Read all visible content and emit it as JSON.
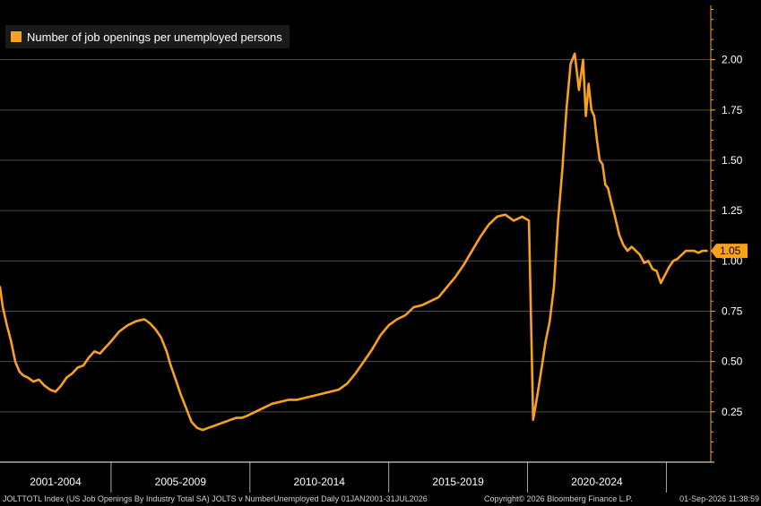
{
  "colors": {
    "background": "#000000",
    "series": "#f9a11b",
    "grid": "#4d4d4d",
    "axis": "#ffffff",
    "last_value_tag": "#f9a11b"
  },
  "legend": {
    "label": "Number of job openings per unemployed persons"
  },
  "footer": {
    "source": "JOLTTOTL Index (US Job Openings By Industry Total SA) JOLTS v NumberUnemployed Daily 01JAN2001-31JUL2026",
    "copyright": "Copyright© 2026 Bloomberg Finance L.P.",
    "timestamp": "01-Sep-2026 11:38:59"
  },
  "chart_data": {
    "type": "line",
    "title": "",
    "xlabel": "",
    "ylabel": "",
    "ylim": [
      0.0,
      2.27
    ],
    "y_axis_position": "right",
    "grid": true,
    "legend_position": "top-left",
    "x_range": [
      2001.0,
      2026.6
    ],
    "x_tick_labels": [
      "2001-2004",
      "2005-2009",
      "2010-2014",
      "2015-2019",
      "2020-2024"
    ],
    "x_tick_dividers": [
      2005.0,
      2010.0,
      2015.0,
      2020.0,
      2025.0
    ],
    "y_ticks": [
      0.25,
      0.5,
      0.75,
      1.0,
      1.25,
      1.5,
      1.75,
      2.0
    ],
    "y_tick_labels": [
      "0.25",
      "0.50",
      "0.75",
      "1.00",
      "1.25",
      "1.50",
      "1.75",
      "2.00"
    ],
    "last_value_label": "1.05",
    "last_value": 1.05,
    "series": [
      {
        "name": "Number of job openings per unemployed persons",
        "x": [
          2001.0,
          2001.1,
          2001.25,
          2001.4,
          2001.55,
          2001.7,
          2001.85,
          2002.0,
          2002.2,
          2002.4,
          2002.6,
          2002.8,
          2003.0,
          2003.2,
          2003.4,
          2003.6,
          2003.8,
          2004.0,
          2004.2,
          2004.4,
          2004.6,
          2004.8,
          2005.0,
          2005.3,
          2005.6,
          2005.9,
          2006.2,
          2006.4,
          2006.6,
          2006.8,
          2007.0,
          2007.15,
          2007.3,
          2007.5,
          2007.7,
          2007.9,
          2008.1,
          2008.3,
          2008.5,
          2008.7,
          2008.9,
          2009.1,
          2009.3,
          2009.5,
          2009.7,
          2009.9,
          2010.2,
          2010.5,
          2010.8,
          2011.1,
          2011.4,
          2011.7,
          2012.0,
          2012.3,
          2012.6,
          2012.9,
          2013.2,
          2013.5,
          2013.8,
          2014.1,
          2014.4,
          2014.7,
          2015.0,
          2015.3,
          2015.6,
          2015.9,
          2016.2,
          2016.5,
          2016.8,
          2017.1,
          2017.4,
          2017.7,
          2018.0,
          2018.3,
          2018.6,
          2018.9,
          2019.2,
          2019.5,
          2019.8,
          2020.05,
          2020.2,
          2020.35,
          2020.5,
          2020.65,
          2020.8,
          2020.95,
          2021.1,
          2021.25,
          2021.4,
          2021.55,
          2021.7,
          2021.85,
          2022.0,
          2022.1,
          2022.2,
          2022.3,
          2022.4,
          2022.5,
          2022.6,
          2022.7,
          2022.8,
          2022.9,
          2023.0,
          2023.15,
          2023.3,
          2023.45,
          2023.6,
          2023.75,
          2023.9,
          2024.05,
          2024.2,
          2024.35,
          2024.5,
          2024.65,
          2024.8,
          2024.95,
          2025.1,
          2025.25,
          2025.4,
          2025.55,
          2025.7,
          2025.85,
          2026.0,
          2026.15,
          2026.3,
          2026.45
        ],
        "values": [
          0.87,
          0.77,
          0.68,
          0.6,
          0.5,
          0.45,
          0.43,
          0.42,
          0.4,
          0.41,
          0.38,
          0.36,
          0.35,
          0.38,
          0.42,
          0.44,
          0.47,
          0.48,
          0.52,
          0.55,
          0.54,
          0.57,
          0.6,
          0.65,
          0.68,
          0.7,
          0.71,
          0.69,
          0.66,
          0.62,
          0.55,
          0.48,
          0.42,
          0.34,
          0.27,
          0.2,
          0.17,
          0.16,
          0.17,
          0.18,
          0.19,
          0.2,
          0.21,
          0.22,
          0.22,
          0.23,
          0.25,
          0.27,
          0.29,
          0.3,
          0.31,
          0.31,
          0.32,
          0.33,
          0.34,
          0.35,
          0.36,
          0.39,
          0.44,
          0.5,
          0.56,
          0.63,
          0.68,
          0.71,
          0.73,
          0.77,
          0.78,
          0.8,
          0.82,
          0.87,
          0.92,
          0.98,
          1.05,
          1.12,
          1.18,
          1.22,
          1.23,
          1.2,
          1.22,
          1.2,
          0.21,
          0.33,
          0.46,
          0.6,
          0.7,
          0.87,
          1.2,
          1.45,
          1.75,
          1.98,
          2.03,
          1.85,
          2.0,
          1.72,
          1.88,
          1.75,
          1.72,
          1.6,
          1.5,
          1.48,
          1.38,
          1.36,
          1.3,
          1.22,
          1.13,
          1.08,
          1.05,
          1.07,
          1.05,
          1.03,
          0.99,
          1.0,
          0.96,
          0.95,
          0.89,
          0.93,
          0.97,
          1.0,
          1.01,
          1.03,
          1.05,
          1.05,
          1.05,
          1.04,
          1.05,
          1.05
        ]
      }
    ]
  }
}
